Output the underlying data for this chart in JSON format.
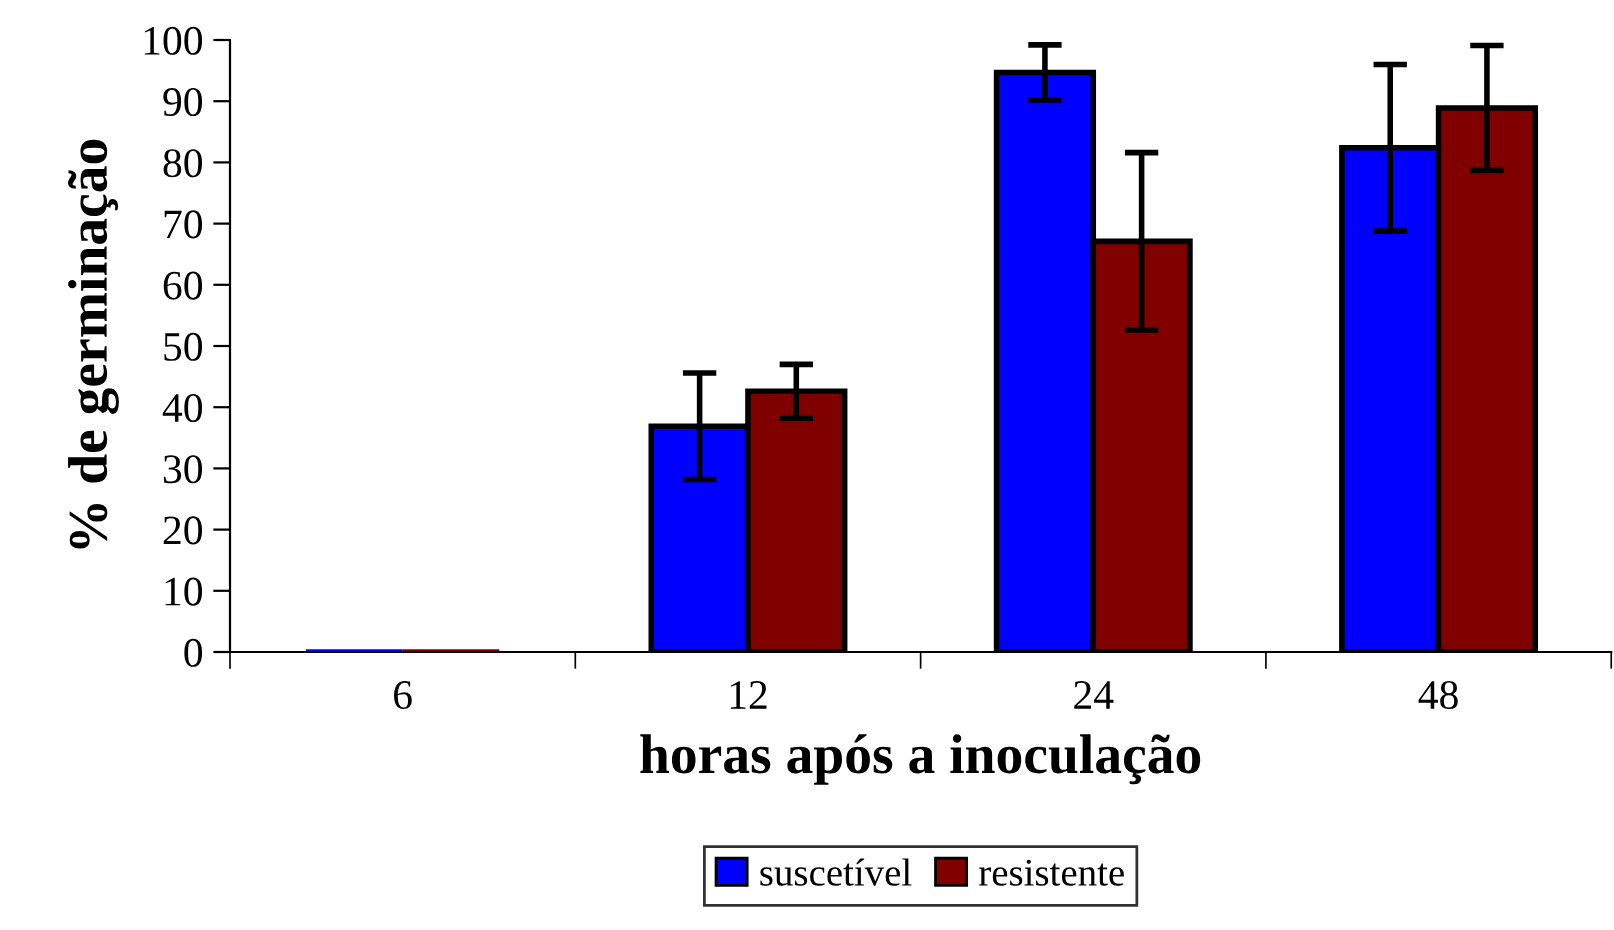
{
  "chart_data": {
    "type": "bar",
    "xlabel": "horas após a inoculação",
    "ylabel": "% de germinação",
    "categories": [
      "6",
      "12",
      "24",
      "48"
    ],
    "ylim": [
      0,
      100
    ],
    "yticks": [
      0,
      10,
      20,
      30,
      40,
      50,
      60,
      70,
      80,
      90,
      100
    ],
    "grid": false,
    "legend": "bottom",
    "series": [
      {
        "name": "suscetível",
        "color": "#0000ff",
        "values": [
          0,
          36.9,
          94.7,
          82.4
        ],
        "errors": [
          null,
          8.7,
          4.5,
          13.6
        ]
      },
      {
        "name": "resistente",
        "color": "#800000",
        "values": [
          0,
          42.6,
          67.1,
          88.9
        ],
        "errors": [
          null,
          4.4,
          14.5,
          10.2
        ]
      }
    ]
  }
}
